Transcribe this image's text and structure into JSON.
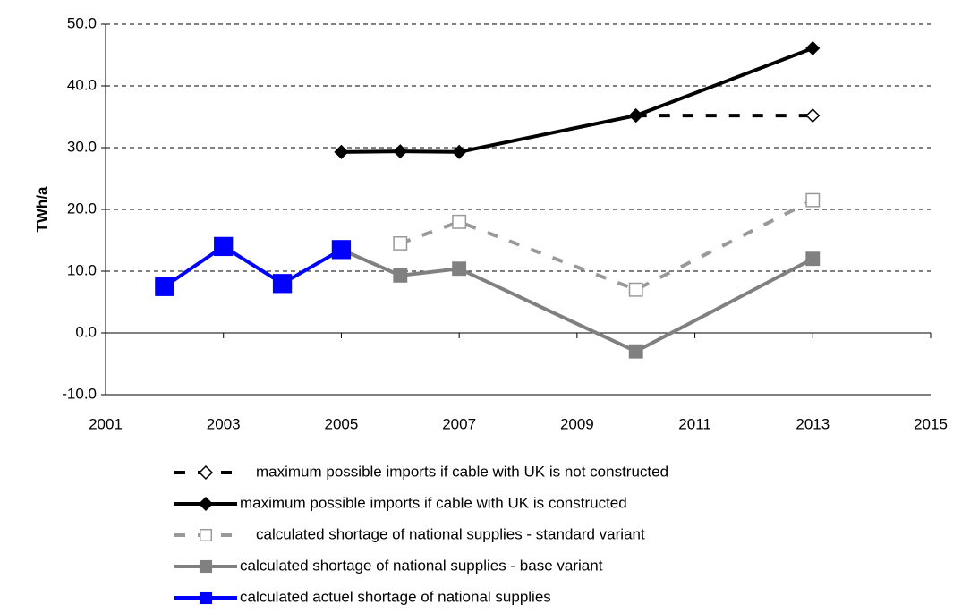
{
  "chart_data": {
    "type": "line",
    "y_label": "TWh/a",
    "xlim": [
      2001,
      2015
    ],
    "xticks": [
      2001,
      2003,
      2005,
      2007,
      2009,
      2011,
      2013,
      2015
    ],
    "ylim": [
      -10,
      50
    ],
    "yticks": [
      {
        "value": -10,
        "label": "-10.0"
      },
      {
        "value": 0,
        "label": "0.0"
      },
      {
        "value": 10,
        "label": "10.0"
      },
      {
        "value": 20,
        "label": "20.0"
      },
      {
        "value": 30,
        "label": "30.0"
      },
      {
        "value": 40,
        "label": "40.0"
      },
      {
        "value": 50,
        "label": "50.0"
      }
    ],
    "grid": true,
    "legend": "bottom",
    "series": [
      {
        "name": "maximum possible imports if cable with UK is not constructed",
        "color": "#000000",
        "dashed": true,
        "marker": "diamond",
        "filled": false,
        "x": [
          2010,
          2013
        ],
        "values": [
          35.2,
          35.2
        ]
      },
      {
        "name": "maximum possible imports if cable with UK is constructed",
        "color": "#000000",
        "dashed": false,
        "marker": "diamond",
        "filled": true,
        "x": [
          2005,
          2006,
          2007,
          2010,
          2013
        ],
        "values": [
          29.3,
          29.4,
          29.3,
          35.2,
          46.1
        ]
      },
      {
        "name": "calculated shortage of national supplies - standard variant",
        "color": "#999999",
        "dashed": true,
        "marker": "square",
        "filled": false,
        "x": [
          2006,
          2007,
          2010,
          2013
        ],
        "values": [
          14.5,
          18.0,
          7.0,
          21.5
        ]
      },
      {
        "name": "calculated shortage of national supplies - base variant",
        "color": "#808080",
        "dashed": false,
        "marker": "square",
        "filled": true,
        "x": [
          2005,
          2006,
          2007,
          2010,
          2013
        ],
        "values": [
          13.5,
          9.3,
          10.4,
          -3.0,
          12.0
        ]
      },
      {
        "name": "calculated actuel shortage of national supplies",
        "color": "#0000ff",
        "dashed": false,
        "marker": "square",
        "filled": true,
        "x": [
          2002,
          2003,
          2004,
          2005
        ],
        "values": [
          7.5,
          14.0,
          8.0,
          13.5
        ]
      }
    ]
  }
}
